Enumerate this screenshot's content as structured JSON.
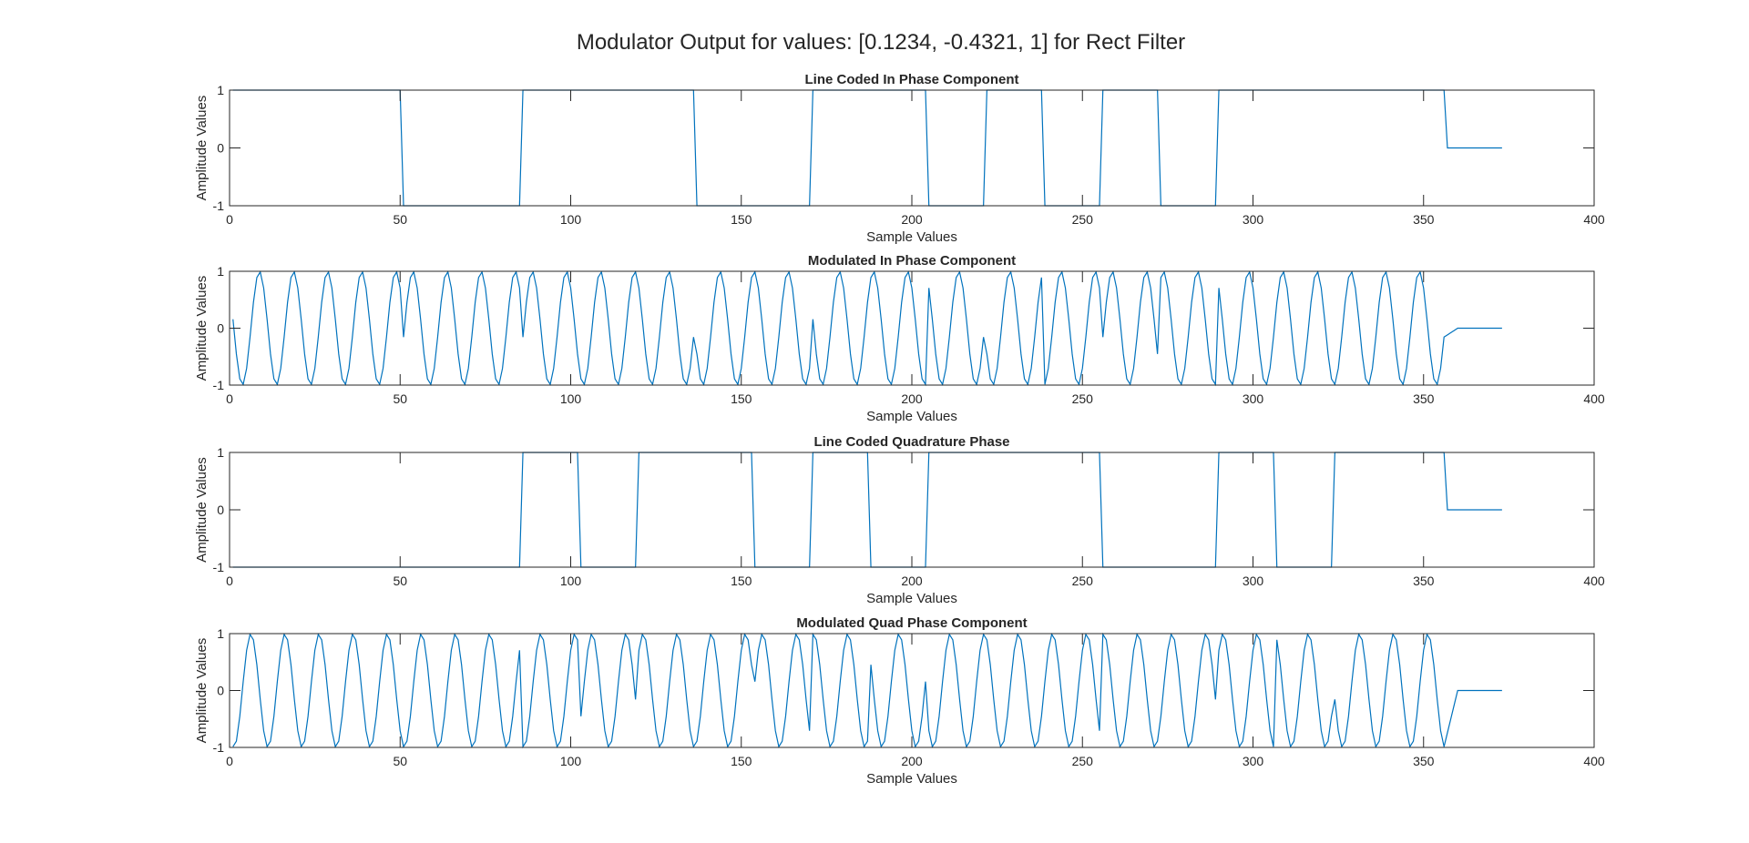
{
  "figure": {
    "title": "Modulator Output for values: [0.1234, -0.4321, 1] for Rect Filter"
  },
  "colors": {
    "line": "#0072BD",
    "axes": "#262626",
    "background": "#ffffff"
  },
  "chart_data": [
    {
      "type": "line",
      "title": "Line Coded In Phase Component",
      "xlabel": "Sample Values",
      "ylabel": "Amplitude Values",
      "xlim": [
        0,
        400
      ],
      "ylim": [
        -1,
        1
      ],
      "xticks": [
        "0",
        "50",
        "100",
        "150",
        "200",
        "250",
        "300",
        "350",
        "400"
      ],
      "yticks": [
        "-1",
        "0",
        "1"
      ],
      "grid": false,
      "signal": "square",
      "start_level": 1,
      "sample_count": 373,
      "transitions": [
        [
          51,
          -1
        ],
        [
          86,
          1
        ],
        [
          137,
          -1
        ],
        [
          171,
          1
        ],
        [
          205,
          -1
        ],
        [
          222,
          1
        ],
        [
          239,
          -1
        ],
        [
          256,
          1
        ],
        [
          273,
          -1
        ],
        [
          290,
          1
        ],
        [
          357,
          0
        ]
      ]
    },
    {
      "type": "line",
      "title": "Modulated In Phase Component",
      "xlabel": "Sample Values",
      "ylabel": "Amplitude Values",
      "xlim": [
        0,
        400
      ],
      "ylim": [
        -1,
        1
      ],
      "xticks": [
        "0",
        "50",
        "100",
        "150",
        "200",
        "250",
        "300",
        "350",
        "400"
      ],
      "yticks": [
        "-1",
        "0",
        "1"
      ],
      "grid": false,
      "signal": "modulated-cosine",
      "samples_per_cycle": 10,
      "phase_deg": 45,
      "follows": "Line Coded In Phase Component",
      "ramp_end": 360
    },
    {
      "type": "line",
      "title": "Line Coded Quadrature Phase",
      "xlabel": "Sample Values",
      "ylabel": "Amplitude Values",
      "xlim": [
        0,
        400
      ],
      "ylim": [
        -1,
        1
      ],
      "xticks": [
        "0",
        "50",
        "100",
        "150",
        "200",
        "250",
        "300",
        "350",
        "400"
      ],
      "yticks": [
        "-1",
        "0",
        "1"
      ],
      "grid": false,
      "signal": "square",
      "start_level": -1,
      "sample_count": 373,
      "transitions": [
        [
          86,
          1
        ],
        [
          103,
          -1
        ],
        [
          120,
          1
        ],
        [
          154,
          -1
        ],
        [
          171,
          1
        ],
        [
          188,
          -1
        ],
        [
          205,
          1
        ],
        [
          256,
          -1
        ],
        [
          290,
          1
        ],
        [
          307,
          -1
        ],
        [
          324,
          1
        ],
        [
          357,
          0
        ]
      ]
    },
    {
      "type": "line",
      "title": "Modulated Quad Phase Component",
      "xlabel": "Sample Values",
      "ylabel": "Amplitude Values",
      "xlim": [
        0,
        400
      ],
      "ylim": [
        -1,
        1
      ],
      "xticks": [
        "0",
        "50",
        "100",
        "150",
        "200",
        "250",
        "300",
        "350",
        "400"
      ],
      "yticks": [
        "-1",
        "0",
        "1"
      ],
      "grid": false,
      "signal": "modulated-sine",
      "samples_per_cycle": 10,
      "phase_deg": 45,
      "follows": "Line Coded Quadrature Phase",
      "ramp_end": 360
    }
  ]
}
